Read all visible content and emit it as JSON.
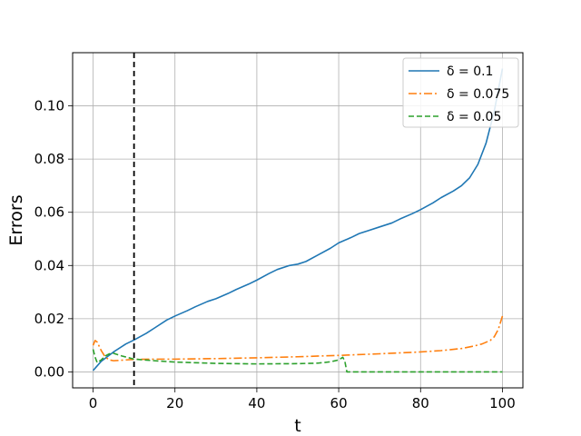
{
  "chart_data": {
    "type": "line",
    "title": "",
    "xlabel": "t",
    "ylabel": "Errors",
    "xlim": [
      -5,
      105
    ],
    "ylim": [
      -0.006,
      0.12
    ],
    "xticks": [
      0,
      20,
      40,
      60,
      80,
      100
    ],
    "xtick_labels": [
      "0",
      "20",
      "40",
      "60",
      "80",
      "100"
    ],
    "yticks": [
      0.0,
      0.02,
      0.04,
      0.06,
      0.08,
      0.1
    ],
    "ytick_labels": [
      "0.00",
      "0.02",
      "0.04",
      "0.06",
      "0.08",
      "0.10"
    ],
    "grid": true,
    "legend_position": "top-right",
    "vline": {
      "x": 10,
      "style": "dashed",
      "color": "#000000"
    },
    "series": [
      {
        "name": "δ = 0.1",
        "color": "#1f77b4",
        "dash": "solid",
        "x": [
          0,
          2,
          5,
          8,
          10,
          13,
          15,
          18,
          20,
          23,
          25,
          28,
          30,
          33,
          35,
          38,
          40,
          43,
          45,
          48,
          50,
          52,
          55,
          58,
          60,
          63,
          65,
          67,
          70,
          73,
          75,
          78,
          80,
          83,
          85,
          88,
          90,
          92,
          94,
          96,
          98,
          100
        ],
        "y": [
          0.0005,
          0.004,
          0.0075,
          0.0105,
          0.012,
          0.0145,
          0.0165,
          0.0195,
          0.021,
          0.023,
          0.0245,
          0.0265,
          0.0275,
          0.0295,
          0.031,
          0.033,
          0.0345,
          0.037,
          0.0385,
          0.04,
          0.0405,
          0.0415,
          0.044,
          0.0465,
          0.0485,
          0.0505,
          0.052,
          0.053,
          0.0545,
          0.056,
          0.0575,
          0.0595,
          0.061,
          0.0635,
          0.0655,
          0.068,
          0.07,
          0.073,
          0.078,
          0.086,
          0.098,
          0.114
        ]
      },
      {
        "name": "δ = 0.075",
        "color": "#ff7f0e",
        "dash": "dashdot",
        "x": [
          0,
          0.5,
          1,
          2,
          3,
          4,
          5,
          7,
          10,
          15,
          20,
          30,
          40,
          50,
          60,
          70,
          80,
          85,
          90,
          93,
          95,
          97,
          98,
          99,
          100
        ],
        "y": [
          0.01,
          0.0118,
          0.0112,
          0.008,
          0.0055,
          0.0045,
          0.0042,
          0.0044,
          0.0047,
          0.0048,
          0.0048,
          0.005,
          0.0053,
          0.0057,
          0.0062,
          0.0068,
          0.0075,
          0.008,
          0.0088,
          0.0097,
          0.0105,
          0.0118,
          0.0132,
          0.016,
          0.021
        ]
      },
      {
        "name": "δ = 0.05",
        "color": "#2ca02c",
        "dash": "dashed",
        "x": [
          0,
          0.5,
          1,
          2,
          3,
          4,
          5,
          7,
          10,
          15,
          20,
          30,
          40,
          50,
          55,
          58,
          60,
          61,
          61.5,
          62,
          65,
          70,
          80,
          90,
          100
        ],
        "y": [
          0.0085,
          0.0055,
          0.0035,
          0.0045,
          0.006,
          0.0068,
          0.007,
          0.006,
          0.0048,
          0.0042,
          0.0037,
          0.0032,
          0.003,
          0.0031,
          0.0033,
          0.0038,
          0.0045,
          0.0055,
          0.004,
          0.0,
          0.0,
          0.0,
          0.0,
          0.0,
          0.0
        ]
      }
    ]
  }
}
